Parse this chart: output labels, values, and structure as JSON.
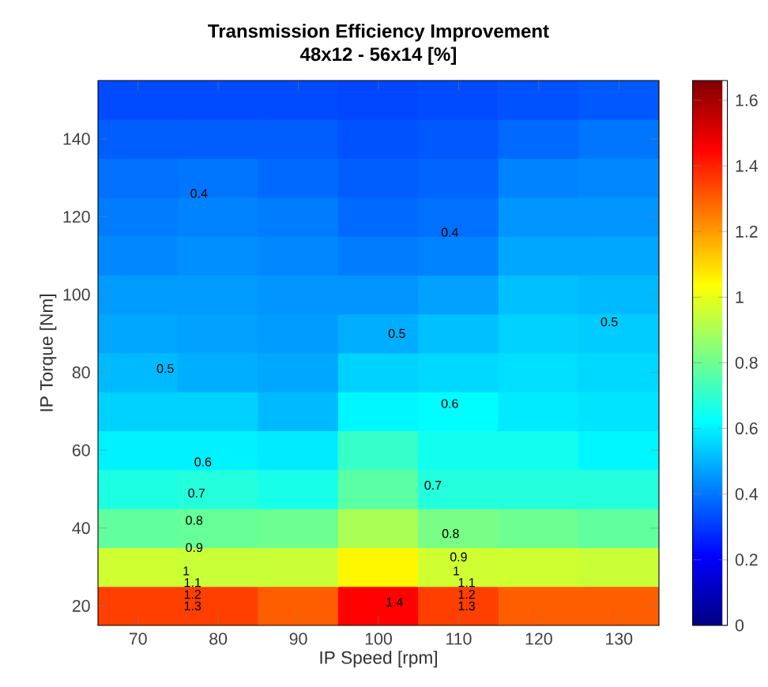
{
  "chart_data": {
    "type": "heatmap",
    "title": "Transmission Efficiency Improvement",
    "subtitle": "48x12 - 56x14 [%]",
    "xlabel": "IP Speed [rpm]",
    "ylabel": "IP Torque [Nm]",
    "categories": [
      "70",
      "80",
      "90",
      "100",
      "110",
      "120",
      "130"
    ],
    "y_categories": [
      null,
      "140",
      null,
      "120",
      null,
      "100",
      null,
      "80",
      null,
      "60",
      null,
      "40",
      null,
      "20"
    ],
    "cells": [
      [
        0.33,
        0.33,
        0.33,
        0.32,
        0.33,
        0.34,
        0.35
      ],
      [
        0.36,
        0.36,
        0.36,
        0.34,
        0.35,
        0.38,
        0.4
      ],
      [
        0.39,
        0.4,
        0.38,
        0.36,
        0.37,
        0.42,
        0.43
      ],
      [
        0.41,
        0.42,
        0.41,
        0.38,
        0.39,
        0.45,
        0.45
      ],
      [
        0.43,
        0.44,
        0.43,
        0.41,
        0.42,
        0.48,
        0.48
      ],
      [
        0.46,
        0.46,
        0.45,
        0.45,
        0.47,
        0.52,
        0.51
      ],
      [
        0.48,
        0.47,
        0.46,
        0.49,
        0.52,
        0.55,
        0.54
      ],
      [
        0.51,
        0.49,
        0.48,
        0.55,
        0.56,
        0.57,
        0.56
      ],
      [
        0.55,
        0.55,
        0.51,
        0.61,
        0.62,
        0.59,
        0.58
      ],
      [
        0.6,
        0.6,
        0.59,
        0.71,
        0.65,
        0.65,
        0.61
      ],
      [
        0.67,
        0.68,
        0.66,
        0.77,
        0.68,
        0.68,
        0.68
      ],
      [
        0.78,
        0.79,
        0.8,
        0.9,
        0.82,
        0.8,
        0.78
      ],
      [
        0.96,
        0.95,
        0.95,
        1.05,
        0.96,
        0.96,
        0.95
      ],
      [
        1.35,
        1.35,
        1.3,
        1.45,
        1.35,
        1.3,
        1.3
      ]
    ],
    "clim": [
      0,
      1.66
    ],
    "cticks": [
      0,
      0.2,
      0.4,
      0.6,
      0.8,
      1,
      1.2,
      1.4,
      1.6
    ],
    "annotations": [
      "0.4",
      "0.4",
      "0.5",
      "0.5",
      "0.5",
      "0.6",
      "0.6",
      "0.7",
      "0.7",
      "0.8",
      "0.8",
      "0.9",
      "0.9",
      "1",
      "1",
      "1.1",
      "1.1",
      "1.2",
      "1.2",
      "1.3",
      "1.3",
      "1.4"
    ]
  }
}
